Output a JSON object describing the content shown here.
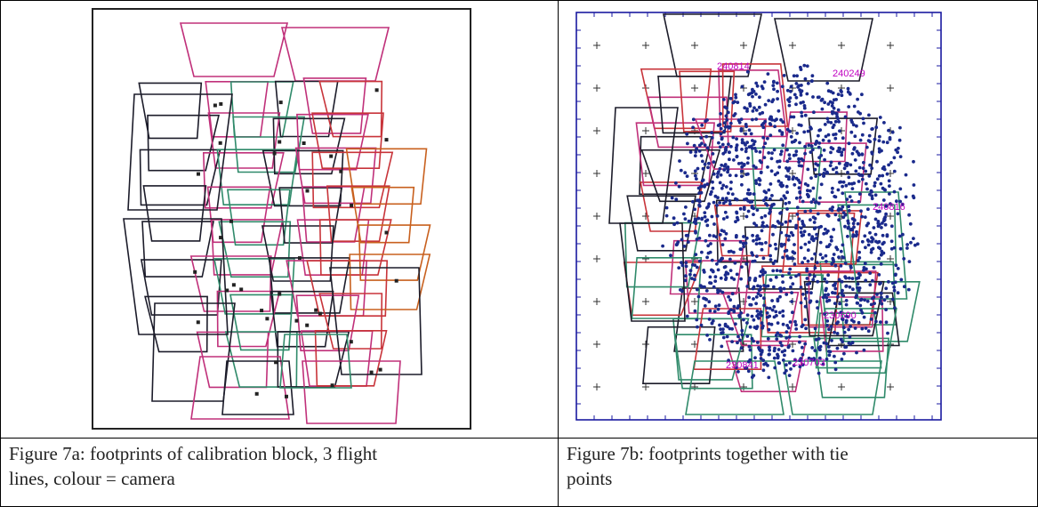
{
  "figure_a": {
    "caption": "Figure 7a: footprints of calibration block, 3 flight\nlines, colour = camera"
  },
  "figure_b": {
    "caption": "Figure 7b: footprints together with tie\npoints",
    "point_labels": [
      "240814",
      "240249",
      "230841",
      "240816",
      "230690",
      "230703"
    ]
  },
  "colors": {
    "footprint_magenta": "#c0307a",
    "footprint_green": "#2f8a6a",
    "footprint_dark": "#1c1c2a",
    "footprint_red": "#c8343a",
    "footprint_orange": "#c8601e",
    "tie_points": "#1a2a8c",
    "frame_blue": "#1a1aa0",
    "label_magenta": "#c000c0"
  }
}
